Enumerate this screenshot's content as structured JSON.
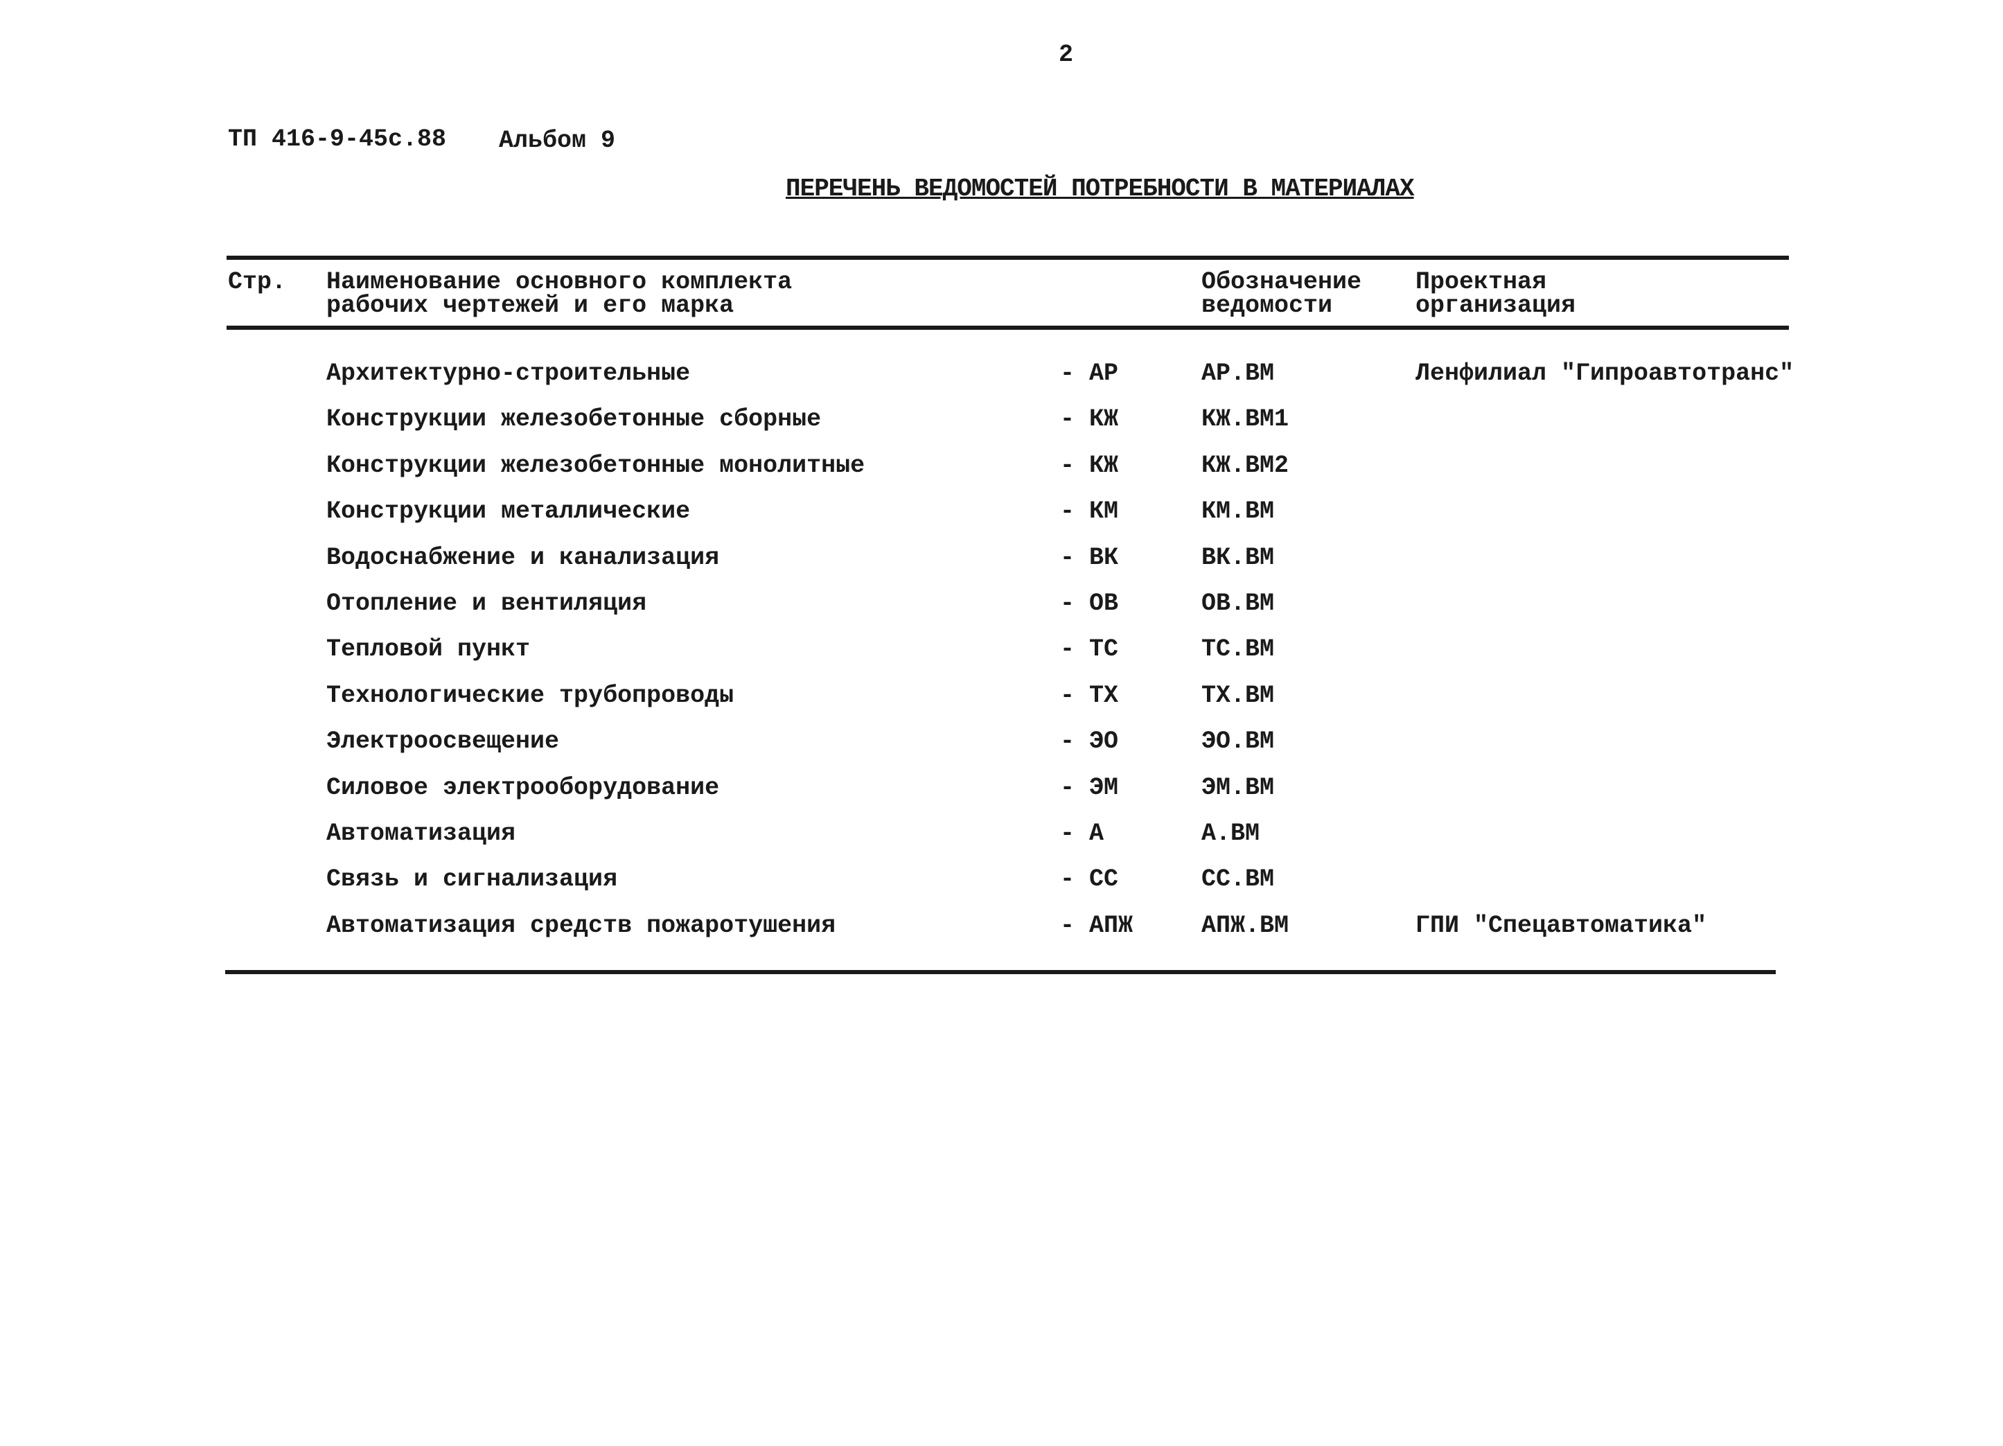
{
  "page_number": "2",
  "doc_code": "ТП 416-9-45с.88",
  "album": "Альбом 9",
  "title": "ПЕРЕЧЕНЬ ВЕДОМОСТЕЙ ПОТРЕБНОСТИ В МАТЕРИАЛАХ",
  "table": {
    "headers": {
      "page": "Стр.",
      "name_line1": "Наименование основного комплекта",
      "name_line2": "рабочих чертежей и его марка",
      "designation_line1": "Обозначение",
      "designation_line2": "ведомости",
      "org_line1": "Проектная",
      "org_line2": "организация"
    },
    "rows": [
      {
        "name": "Архитектурно-строительные",
        "mark": "- АР",
        "designation": "АР.ВМ",
        "org": "Ленфилиал \"Гипроавтотранс\""
      },
      {
        "name": "Конструкции железобетонные сборные",
        "mark": "- КЖ",
        "designation": "КЖ.ВМ1",
        "org": ""
      },
      {
        "name": "Конструкции железобетонные монолитные",
        "mark": "- КЖ",
        "designation": "КЖ.ВМ2",
        "org": ""
      },
      {
        "name": "Конструкции металлические",
        "mark": "- КМ",
        "designation": "КМ.ВМ",
        "org": ""
      },
      {
        "name": "Водоснабжение и канализация",
        "mark": "- ВК",
        "designation": "ВК.ВМ",
        "org": ""
      },
      {
        "name": "Отопление и вентиляция",
        "mark": "- ОВ",
        "designation": "ОВ.ВМ",
        "org": ""
      },
      {
        "name": "Тепловой пункт",
        "mark": "- ТС",
        "designation": "ТС.ВМ",
        "org": ""
      },
      {
        "name": "Технологические трубопроводы",
        "mark": "- ТХ",
        "designation": "ТХ.ВМ",
        "org": ""
      },
      {
        "name": "Электроосвещение",
        "mark": "- ЭО",
        "designation": "ЭО.ВМ",
        "org": ""
      },
      {
        "name": "Силовое электрооборудование",
        "mark": "- ЭМ",
        "designation": "ЭМ.ВМ",
        "org": ""
      },
      {
        "name": "Автоматизация",
        "mark": "- А",
        "designation": "А.ВМ",
        "org": ""
      },
      {
        "name": "Связь и сигнализация",
        "mark": "- СС",
        "designation": "СС.ВМ",
        "org": ""
      },
      {
        "name": "Автоматизация средств пожаротушения",
        "mark": "- АПЖ",
        "designation": "АПЖ.ВМ",
        "org": "ГПИ \"Спецавтоматика\""
      }
    ]
  }
}
